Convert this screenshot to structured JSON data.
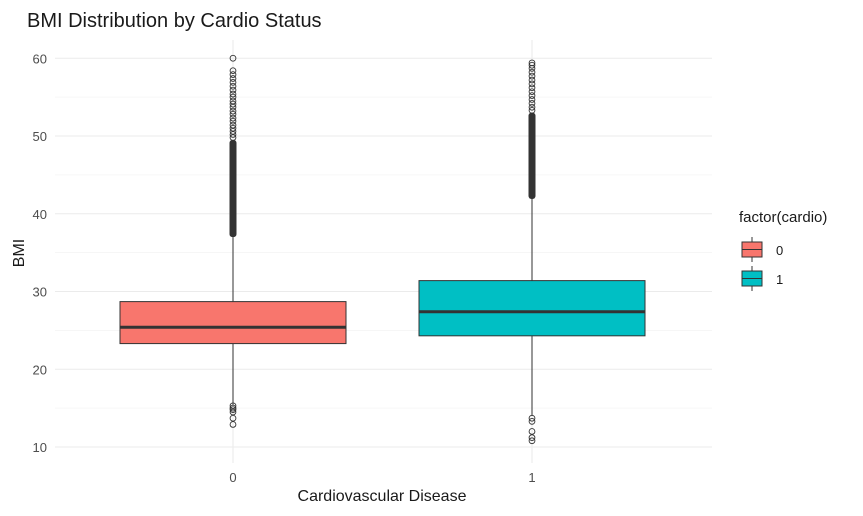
{
  "chart_data": {
    "type": "box",
    "title": "BMI Distribution by Cardio Status",
    "xlabel": "Cardiovascular Disease",
    "ylabel": "BMI",
    "categories": [
      "0",
      "1"
    ],
    "ylim": [
      8,
      63
    ],
    "yticks": [
      10,
      20,
      30,
      40,
      50,
      60
    ],
    "grid": true,
    "legend": {
      "title": "factor(cardio)",
      "position": "right",
      "entries": [
        {
          "label": "0",
          "color": "#F8766D"
        },
        {
          "label": "1",
          "color": "#00BFC4"
        }
      ]
    },
    "series": [
      {
        "category": "0",
        "color": "#F8766D",
        "q1": 23.3,
        "median": 25.4,
        "q3": 28.7,
        "whisker_low": 15.4,
        "whisker_high": 37.0,
        "outliers_high_dense": [
          37.0,
          49.5
        ],
        "outliers_high": [
          49.8,
          50.2,
          50.6,
          51.0,
          51.4,
          51.9,
          52.3,
          52.8,
          53.2,
          53.7,
          54.1,
          54.5,
          55.0,
          55.4,
          55.9,
          56.4,
          56.9,
          57.4,
          57.9,
          58.4,
          60.0
        ],
        "outliers_low": [
          15.3,
          15.0,
          14.8,
          14.5,
          13.7,
          12.9
        ]
      },
      {
        "category": "1",
        "color": "#00BFC4",
        "q1": 24.3,
        "median": 27.4,
        "q3": 31.4,
        "whisker_low": 14.0,
        "whisker_high": 41.9,
        "outliers_high_dense": [
          41.9,
          53.0
        ],
        "outliers_high": [
          53.3,
          53.7,
          54.2,
          54.7,
          55.2,
          55.7,
          56.2,
          56.7,
          57.2,
          57.7,
          58.2,
          58.7,
          59.1,
          59.4
        ],
        "outliers_low": [
          13.7,
          13.3,
          12.0,
          11.2,
          10.8
        ]
      }
    ]
  }
}
